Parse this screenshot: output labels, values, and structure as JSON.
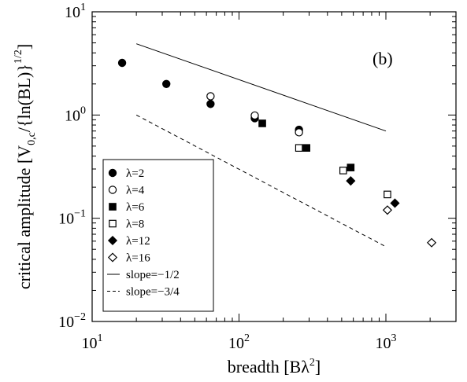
{
  "chart_data": {
    "type": "scatter",
    "xlabel_main": "breadth [Bλ",
    "xlabel_sup": "2",
    "xlabel_end": "]",
    "ylabel_main": "critical amplitude [V",
    "ylabel_sub": "0,c",
    "ylabel_mid": "/{ln(BL)}",
    "ylabel_sup": "1/2",
    "ylabel_end": "]",
    "panel_label": "(b)",
    "x_scale": "log",
    "y_scale": "log",
    "xlim": [
      10,
      3000
    ],
    "ylim": [
      0.01,
      10
    ],
    "x_ticks": [
      {
        "value": 10,
        "base": "10",
        "exp": "1"
      },
      {
        "value": 100,
        "base": "10",
        "exp": "2"
      },
      {
        "value": 1000,
        "base": "10",
        "exp": "3"
      }
    ],
    "y_ticks": [
      {
        "value": 0.01,
        "base": "10",
        "exp": "−2"
      },
      {
        "value": 0.1,
        "base": "10",
        "exp": "−1"
      },
      {
        "value": 1,
        "base": "10",
        "exp": "0"
      },
      {
        "value": 10,
        "base": "10",
        "exp": "1"
      }
    ],
    "legend_position": "bottom-left",
    "series": [
      {
        "name": "λ=2",
        "marker": "circle",
        "filled": true,
        "points": [
          [
            16,
            3.2
          ],
          [
            32,
            2.0
          ],
          [
            64,
            1.28
          ],
          [
            128,
            0.93
          ],
          [
            256,
            0.72
          ]
        ]
      },
      {
        "name": "λ=4",
        "marker": "circle",
        "filled": false,
        "points": [
          [
            64,
            1.52
          ],
          [
            128,
            0.99
          ],
          [
            256,
            0.68
          ]
        ]
      },
      {
        "name": "λ=6",
        "marker": "square",
        "filled": true,
        "points": [
          [
            144,
            0.83
          ],
          [
            288,
            0.48
          ],
          [
            576,
            0.31
          ]
        ]
      },
      {
        "name": "λ=8",
        "marker": "square",
        "filled": false,
        "points": [
          [
            256,
            0.48
          ],
          [
            512,
            0.29
          ],
          [
            1024,
            0.17
          ]
        ]
      },
      {
        "name": "λ=12",
        "marker": "diamond",
        "filled": true,
        "points": [
          [
            576,
            0.23
          ],
          [
            1152,
            0.14
          ]
        ]
      },
      {
        "name": "λ=16",
        "marker": "diamond",
        "filled": false,
        "points": [
          [
            1024,
            0.12
          ],
          [
            2048,
            0.058
          ]
        ]
      }
    ],
    "lines": [
      {
        "name": "slope=−1/2",
        "style": "solid",
        "points": [
          [
            20,
            4.9
          ],
          [
            1000,
            0.7
          ]
        ]
      },
      {
        "name": "slope=−3/4",
        "style": "dashed",
        "points": [
          [
            20,
            1.0
          ],
          [
            1000,
            0.053
          ]
        ]
      }
    ]
  }
}
